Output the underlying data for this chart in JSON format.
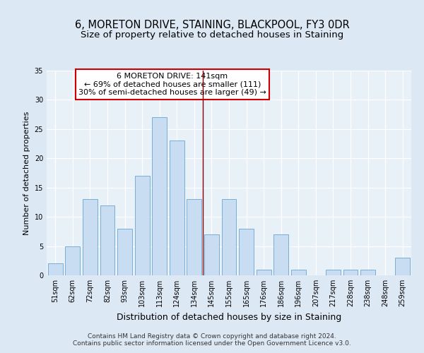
{
  "title1": "6, MORETON DRIVE, STAINING, BLACKPOOL, FY3 0DR",
  "title2": "Size of property relative to detached houses in Staining",
  "xlabel": "Distribution of detached houses by size in Staining",
  "ylabel": "Number of detached properties",
  "categories": [
    "51sqm",
    "62sqm",
    "72sqm",
    "82sqm",
    "93sqm",
    "103sqm",
    "113sqm",
    "124sqm",
    "134sqm",
    "145sqm",
    "155sqm",
    "165sqm",
    "176sqm",
    "186sqm",
    "196sqm",
    "207sqm",
    "217sqm",
    "228sqm",
    "238sqm",
    "248sqm",
    "259sqm"
  ],
  "values": [
    2,
    5,
    13,
    12,
    8,
    17,
    27,
    23,
    13,
    7,
    13,
    8,
    1,
    7,
    1,
    0,
    1,
    1,
    1,
    0,
    3
  ],
  "bar_color": "#c9ddf2",
  "bar_edge_color": "#7aaed6",
  "vline_x": 8.5,
  "vline_color": "#8b0000",
  "annotation_text": "6 MORETON DRIVE: 141sqm\n← 69% of detached houses are smaller (111)\n30% of semi-detached houses are larger (49) →",
  "annotation_box_color": "#ffffff",
  "annotation_box_edge_color": "#cc0000",
  "ylim": [
    0,
    35
  ],
  "yticks": [
    0,
    5,
    10,
    15,
    20,
    25,
    30,
    35
  ],
  "background_color": "#dde8f5",
  "plot_bg_color": "#e8f0f8",
  "footer1": "Contains HM Land Registry data © Crown copyright and database right 2024.",
  "footer2": "Contains public sector information licensed under the Open Government Licence v3.0.",
  "title1_fontsize": 10.5,
  "title2_fontsize": 9.5,
  "xlabel_fontsize": 9,
  "ylabel_fontsize": 8,
  "tick_fontsize": 7,
  "annotation_fontsize": 8,
  "footer_fontsize": 6.5
}
